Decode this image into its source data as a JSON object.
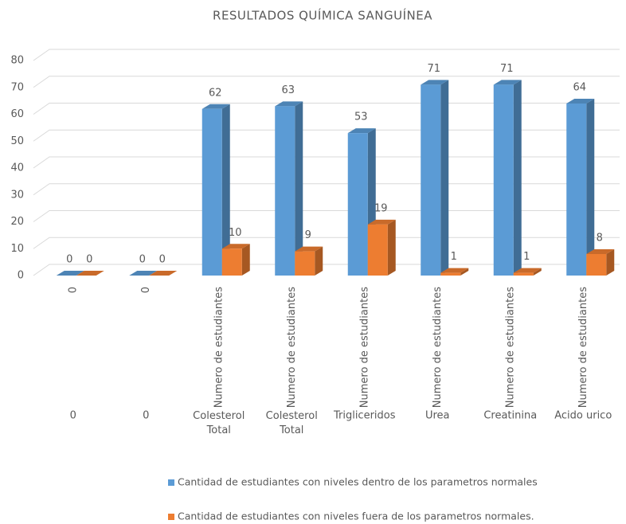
{
  "chart_data": {
    "type": "bar3d",
    "title": "RESULTADOS QUÍMICA SANGUÍNEA",
    "categories": [
      "0",
      "0",
      "Colesterol Total",
      "Colesterol Total",
      "Trigliceridos",
      "Urea",
      "Creatinina",
      "Acido urico"
    ],
    "sub_categories": [
      "0",
      "0",
      "Numero de estudiantes",
      "Numero de estudiantes",
      "Numero de estudiantes",
      "Numero de estudiantes",
      "Numero de estudiantes",
      "Numero de estudiantes"
    ],
    "series": [
      {
        "name": "Cantidad de estudiantes con niveles dentro de los parametros normales",
        "color": "#5b9bd5",
        "values": [
          0,
          0,
          62,
          63,
          53,
          71,
          71,
          64
        ]
      },
      {
        "name": "Cantidad de estudiantes con niveles fuera de los parametros normales.",
        "color": "#ed7d31",
        "values": [
          0,
          0,
          10,
          9,
          19,
          1,
          1,
          8
        ]
      }
    ],
    "ylim": [
      0,
      80
    ],
    "yticks": [
      0,
      10,
      20,
      30,
      40,
      50,
      60,
      70,
      80
    ],
    "grid": true,
    "legend": "bottom"
  }
}
